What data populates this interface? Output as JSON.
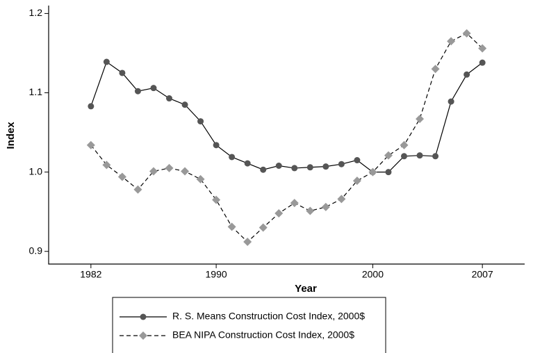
{
  "chart_data": {
    "type": "line",
    "x_label": "Year",
    "y_label": "Index",
    "x": [
      1982,
      1983,
      1984,
      1985,
      1986,
      1987,
      1988,
      1989,
      1990,
      1991,
      1992,
      1993,
      1994,
      1995,
      1996,
      1997,
      1998,
      1999,
      2000,
      2001,
      2002,
      2003,
      2004,
      2005,
      2006,
      2007
    ],
    "series": [
      {
        "name": "R. S. Means Construction Cost Index, 2000$",
        "color": "#555555",
        "marker": "circle",
        "dash": "solid",
        "values": [
          1.083,
          1.139,
          1.125,
          1.102,
          1.106,
          1.093,
          1.085,
          1.064,
          1.034,
          1.019,
          1.011,
          1.003,
          1.008,
          1.005,
          1.006,
          1.007,
          1.01,
          1.015,
          1.0,
          1.0,
          1.02,
          1.021,
          1.02,
          1.089,
          1.123,
          1.138
        ]
      },
      {
        "name": "BEA NIPA Construction Cost Index, 2000$",
        "color": "#999999",
        "marker": "diamond",
        "dash": "dashed",
        "values": [
          1.034,
          1.009,
          0.994,
          0.978,
          1.001,
          1.005,
          1.001,
          0.991,
          0.965,
          0.931,
          0.912,
          0.93,
          0.948,
          0.961,
          0.951,
          0.956,
          0.966,
          0.989,
          1.0,
          1.021,
          1.034,
          1.067,
          1.13,
          1.165,
          1.175,
          1.156
        ]
      }
    ],
    "xlim": [
      1979.3,
      2009.7
    ],
    "xticks": [
      1982,
      1990,
      2000,
      2007
    ],
    "ylim": [
      0.884,
      1.21
    ],
    "yticks": [
      {
        "value": 0.9,
        "label": "0.9"
      },
      {
        "value": 1.0,
        "label": "1.0"
      },
      {
        "value": 1.1,
        "label": "1.1"
      },
      {
        "value": 1.2,
        "label": "1.2"
      }
    ],
    "legend": "bottom"
  }
}
